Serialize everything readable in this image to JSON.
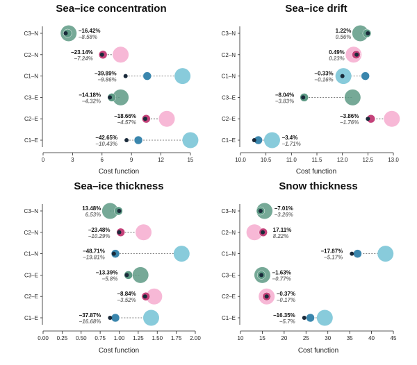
{
  "colors": {
    "C3": "#5e9a85",
    "C2": "#c4427a",
    "C2_big": "#f7b8d6",
    "C1": "#3a86ad",
    "C1_big": "#88cbdb",
    "dot": "#1a2a3a"
  },
  "chart_data": [
    {
      "type": "scatter",
      "title": "Sea–ice concentration",
      "xlabel": "Cost function",
      "xlim": [
        0,
        15.5
      ],
      "xticks": [
        0,
        3,
        6,
        9,
        12,
        15
      ],
      "tick_labels": [
        "0",
        "3",
        "6",
        "9",
        "12",
        "15"
      ],
      "categories": [
        "C3–N",
        "C2–N",
        "C1–N",
        "C3–E",
        "C2–E",
        "C1–E"
      ],
      "rows": [
        {
          "label": "C3–N",
          "group": "C3",
          "small": 2.3,
          "mid": 2.5,
          "big": 2.6,
          "pct1": "−16.42%",
          "pct2": "−8.58%"
        },
        {
          "label": "C2–N",
          "group": "C2",
          "small": 6.0,
          "mid": 6.1,
          "big": 7.9,
          "pct1": "−23.14%",
          "pct2": "−7.24%"
        },
        {
          "label": "C1–N",
          "group": "C1",
          "small": 8.4,
          "mid": 10.6,
          "big": 14.2,
          "pct1": "−39.89%",
          "pct2": "−9.86%"
        },
        {
          "label": "C3–E",
          "group": "C3",
          "small": 6.8,
          "mid": 7.0,
          "big": 7.9,
          "pct1": "−14.18%",
          "pct2": "−4.32%"
        },
        {
          "label": "C2–E",
          "group": "C2",
          "small": 10.4,
          "mid": 10.5,
          "big": 12.6,
          "pct1": "−18.66%",
          "pct2": "−4.57%"
        },
        {
          "label": "C1–E",
          "group": "C1",
          "small": 8.5,
          "mid": 9.7,
          "big": 15.0,
          "pct1": "−42.65%",
          "pct2": "−10.43%"
        }
      ]
    },
    {
      "type": "scatter",
      "title": "Sea–ice drift",
      "xlabel": "Cost function",
      "xlim": [
        10.0,
        13.0
      ],
      "xticks": [
        10.0,
        10.5,
        11.0,
        11.5,
        12.0,
        12.5,
        13.0
      ],
      "tick_labels": [
        "10.0",
        "10.5",
        "11.0",
        "11.5",
        "12.0",
        "12.5",
        "13.0"
      ],
      "categories": [
        "C3–N",
        "C2–N",
        "C1–N",
        "C3–E",
        "C2–E",
        "C1–E"
      ],
      "rows": [
        {
          "label": "C3–N",
          "group": "C3",
          "small": 12.5,
          "mid": 12.48,
          "big": 12.35,
          "pct1": "1.22%",
          "pct2": "0.56%"
        },
        {
          "label": "C2–N",
          "group": "C2",
          "small": 12.28,
          "mid": 12.27,
          "big": 12.22,
          "pct1": "0.49%",
          "pct2": "0.23%"
        },
        {
          "label": "C1–N",
          "group": "C1",
          "small": 12.0,
          "mid": 12.45,
          "big": 12.02,
          "pct1": "−0.33%",
          "pct2": "−0.16%"
        },
        {
          "label": "C3–E",
          "group": "C3",
          "small": 11.23,
          "mid": 11.25,
          "big": 12.2,
          "pct1": "−8.04%",
          "pct2": "−3.83%"
        },
        {
          "label": "C2–E",
          "group": "C2",
          "small": 12.5,
          "mid": 12.56,
          "big": 12.97,
          "pct1": "−3.86%",
          "pct2": "−1.76%"
        },
        {
          "label": "C1–E",
          "group": "C1",
          "small": 10.27,
          "mid": 10.35,
          "big": 10.62,
          "pct1": "−3.4%",
          "pct2": "−1.71%"
        }
      ]
    },
    {
      "type": "scatter",
      "title": "Sea–ice thickness",
      "xlabel": "Cost function",
      "xlim": [
        0.0,
        2.0
      ],
      "xticks": [
        0.0,
        0.25,
        0.5,
        0.75,
        1.0,
        1.25,
        1.5,
        1.75,
        2.0
      ],
      "tick_labels": [
        "0.00",
        "0.25",
        "0.50",
        "0.75",
        "1.00",
        "1.25",
        "1.50",
        "1.75",
        "2.00"
      ],
      "categories": [
        "C3–N",
        "C2–N",
        "C1–N",
        "C3–E",
        "C2–E",
        "C1–E"
      ],
      "rows": [
        {
          "label": "C3–N",
          "group": "C3",
          "small": 1.0,
          "mid": 0.99,
          "big": 0.88,
          "pct1": "13.48%",
          "pct2": "6.53%"
        },
        {
          "label": "C2–N",
          "group": "C2",
          "small": 1.0,
          "mid": 1.02,
          "big": 1.32,
          "pct1": "−23.48%",
          "pct2": "−10.29%"
        },
        {
          "label": "C1–N",
          "group": "C1",
          "small": 0.93,
          "mid": 0.95,
          "big": 1.82,
          "pct1": "−48.71%",
          "pct2": "−19.81%"
        },
        {
          "label": "C3–E",
          "group": "C3",
          "small": 1.1,
          "mid": 1.12,
          "big": 1.28,
          "pct1": "−13.39%",
          "pct2": "−5.8%"
        },
        {
          "label": "C2–E",
          "group": "C2",
          "small": 1.34,
          "mid": 1.35,
          "big": 1.46,
          "pct1": "−8.84%",
          "pct2": "−3.52%"
        },
        {
          "label": "C1–E",
          "group": "C1",
          "small": 0.88,
          "mid": 0.95,
          "big": 1.42,
          "pct1": "−37.87%",
          "pct2": "−16.68%"
        }
      ]
    },
    {
      "type": "scatter",
      "title": "Snow thickness",
      "xlabel": "Cost function",
      "xlim": [
        10,
        45
      ],
      "xticks": [
        10,
        15,
        20,
        25,
        30,
        35,
        40,
        45
      ],
      "tick_labels": [
        "10",
        "15",
        "20",
        "25",
        "30",
        "35",
        "40",
        "45"
      ],
      "categories": [
        "C3–N",
        "C2–N",
        "C1–N",
        "C3–E",
        "C2–E",
        "C1–E"
      ],
      "rows": [
        {
          "label": "C3–N",
          "group": "C3",
          "small": 14.6,
          "mid": 14.6,
          "big": 15.5,
          "pct1": "−7.01%",
          "pct2": "−3.26%"
        },
        {
          "label": "C2–N",
          "group": "C2",
          "small": 15.1,
          "mid": 15.2,
          "big": 13.2,
          "pct1": "17.11%",
          "pct2": "8.22%"
        },
        {
          "label": "C1–N",
          "group": "C1",
          "small": 35.5,
          "mid": 36.8,
          "big": 43.2,
          "pct1": "−17.87%",
          "pct2": "−5.17%"
        },
        {
          "label": "C3–E",
          "group": "C3",
          "small": 14.8,
          "mid": 14.8,
          "big": 15.0,
          "pct1": "−1.63%",
          "pct2": "−0.77%"
        },
        {
          "label": "C2–E",
          "group": "C2",
          "small": 16.0,
          "mid": 16.0,
          "big": 16.0,
          "pct1": "−0.37%",
          "pct2": "−0.17%"
        },
        {
          "label": "C1–E",
          "group": "C1",
          "small": 24.6,
          "mid": 26.0,
          "big": 29.3,
          "pct1": "−16.35%",
          "pct2": "−5.7%"
        }
      ]
    }
  ]
}
